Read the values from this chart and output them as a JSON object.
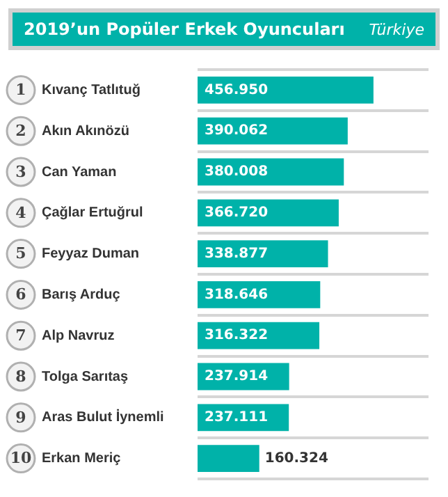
{
  "chart_data": {
    "type": "bar",
    "orientation": "horizontal",
    "title": "2019’un Popüler Erkek Oyuncuları",
    "subtitle": "Türkiye",
    "categories": [
      "Kıvanç Tatlıtuğ",
      "Akın Akınözü",
      "Can Yaman",
      "Çağlar Ertuğrul",
      "Feyyaz Duman",
      "Barış Arduç",
      "Alp Navruz",
      "Tolga Sarıtaş",
      "Aras Bulut İynemli",
      "Erkan Meriç"
    ],
    "values": [
      456950,
      390062,
      380008,
      366720,
      338877,
      318646,
      316322,
      237914,
      237111,
      160324
    ],
    "value_labels": [
      "456.950",
      "390.062",
      "380.008",
      "366.720",
      "338.877",
      "318.646",
      "316.322",
      "237.914",
      "237.111",
      "160.324"
    ],
    "color": "#00b2a9",
    "annotations": [
      "1",
      "2",
      "3",
      "4",
      "5",
      "6",
      "7",
      "8",
      "9",
      "10"
    ],
    "grid": "y"
  }
}
